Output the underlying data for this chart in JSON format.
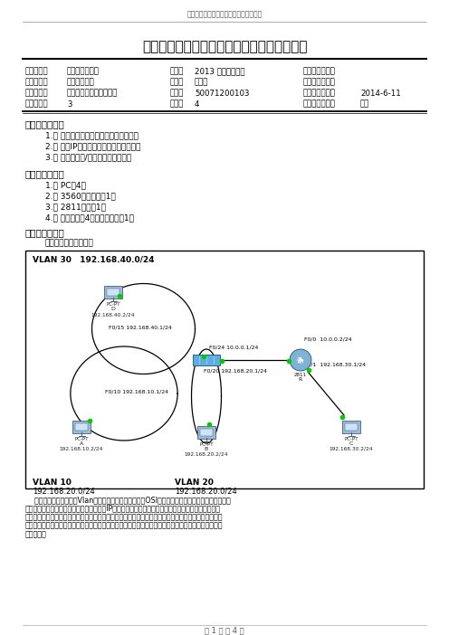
{
  "header_small": "华东师范大学计算机科学技术系实验报告",
  "title": "华东师范大学计算机科学技术系上机实践报告",
  "fields": [
    [
      "课程名称：",
      "计算机网络工程",
      "年级：",
      "2013 国培计算机班",
      "上机实践成绩：",
      ""
    ],
    [
      "指导教师：",
      "陆刚、张志成",
      "姓名：",
      "黄嘉鑫",
      "创新实践成绩：",
      ""
    ],
    [
      "实验名称：",
      "三层交换机静态路由配置",
      "学号：",
      "50071200103",
      "上机实践日期：",
      "2014-6-11"
    ],
    [
      "座位编号：",
      "3",
      "组号：",
      "4",
      "上机实践时间：",
      "学时"
    ]
  ],
  "section1_title": "一、　实验目的",
  "section1_items": [
    "1.　 学会计算机和路由器、交换机的连接",
    "2.　 掌握IP地址的分配和划分子网的方法",
    "3.　 掌握路由器/交换机的命令行配置"
  ],
  "section2_title": "二、　实验设备",
  "section2_items": [
    "1.　 PC机4台",
    "2.　 3560三层交换机1台",
    "3.　 2811路由器1台",
    "4.　 平行双绞线4根、交叉双绞线1根"
  ],
  "section3_title": "三、　实验原理",
  "section3_intro": "　　网络拓扑图如下：",
  "vlan30_label": "VLAN 30   192.168.40.0/24",
  "vlan10_label": "VLAN 10",
  "vlan10_ip": "192.168.20.0/24",
  "vlan20_label": "VLAN 20",
  "vlan20_ip": "192.168.20.0/24",
  "section4_text": "通过路由器实现各不同Vlan之间的通信。路由器工作在OSI模型中的第三层，即网络层。路由器利用网络层定义的「逻辑」上的网络地址（即IP地址）来区分不同的网络，实现网络的互连和隔离，保持各个网络的独立性。路由器不转发「广播」消息，而把广播消息限制在各自的网络内部，发送到其他网络的数据先被送达路由器，再由路由器转发出去，同一个子网内的主机可以互由通信，不同子网的主机不能直接通信。",
  "page_footer": "第 1 页 共 4 页",
  "bg_color": "#ffffff",
  "text_color": "#000000",
  "border_color": "#000000"
}
